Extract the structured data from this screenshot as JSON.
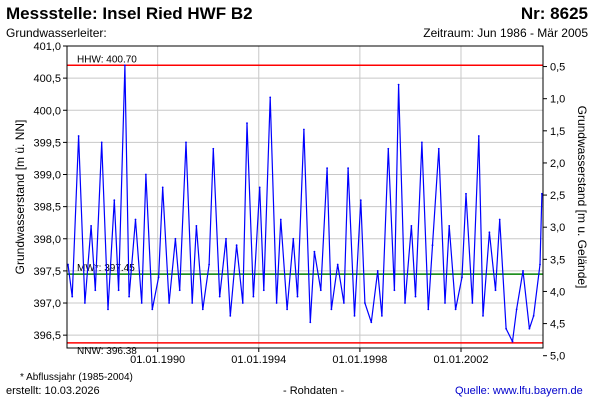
{
  "header": {
    "title": "Messstelle: Insel Ried HWF B2",
    "number": "Nr: 8625",
    "aquifer": "Grundwasserleiter:",
    "period": "Zeitraum: Jun 1986 - Mär 2005"
  },
  "footer": {
    "footnote": "* Abflussjahr (1985-2004)",
    "created": "erstellt:  10.03.2026",
    "raw_data": "- Rohdaten -",
    "source": "Quelle: www.lfu.bayern.de"
  },
  "colors": {
    "series": "#0000ff",
    "extreme_lines": "#ff0000",
    "mean_line": "#008000",
    "grid": "#c8c8c8"
  },
  "chart_data": {
    "type": "line",
    "title": "Messstelle: Insel Ried HWF B2",
    "ylabel": "Grundwasserstand [m ü. NN]",
    "ylabel_right": "Grundwasserstand [m u. Gelände]",
    "ylim": [
      396.3,
      401.0
    ],
    "ylim_right": [
      0.18,
      4.88
    ],
    "xlim": [
      "1986-06-01",
      "2005-03-31"
    ],
    "yticks": [
      "401,0",
      "400,5",
      "400,0",
      "399,5",
      "399,0",
      "398,5",
      "398,0",
      "397,5",
      "397,0",
      "396,5"
    ],
    "yticks_right": [
      "0,5",
      "1,0",
      "1,5",
      "2,0",
      "2,5",
      "3,0",
      "3,5",
      "4,0",
      "4,5",
      "5,0"
    ],
    "xticks": [
      "01.01.1990",
      "01.01.1994",
      "01.01.1998",
      "01.01.2002"
    ],
    "grid": true,
    "reference_lines": [
      {
        "label": "HHW: 400.70",
        "value": 400.7
      },
      {
        "label": "MW*: 397.45",
        "value": 397.45
      },
      {
        "label": "NNW: 396.38",
        "value": 396.38
      }
    ],
    "series": [
      {
        "x": [
          "1986-06",
          "1986-08",
          "1986-11",
          "1987-02",
          "1987-05",
          "1987-07",
          "1987-10",
          "1988-01",
          "1988-04",
          "1988-06",
          "1988-09",
          "1988-11",
          "1989-02",
          "1989-05",
          "1989-07",
          "1989-10",
          "1990-01",
          "1990-03",
          "1990-06",
          "1990-09",
          "1990-11",
          "1991-02",
          "1991-05",
          "1991-07",
          "1991-10",
          "1992-01",
          "1992-03",
          "1992-06",
          "1992-09",
          "1992-11",
          "1993-02",
          "1993-05",
          "1993-07",
          "1993-10",
          "1994-01",
          "1994-03",
          "1994-06",
          "1994-09",
          "1994-11",
          "1995-02",
          "1995-05",
          "1995-07",
          "1995-10",
          "1996-01",
          "1996-03",
          "1996-06",
          "1996-09",
          "1996-11",
          "1997-02",
          "1997-05",
          "1997-07",
          "1997-10",
          "1998-01",
          "1998-03",
          "1998-06",
          "1998-09",
          "1998-11",
          "1999-02",
          "1999-05",
          "1999-07",
          "1999-10",
          "2000-01",
          "2000-03",
          "2000-06",
          "2000-09",
          "2000-11",
          "2001-02",
          "2001-05",
          "2001-07",
          "2001-10",
          "2002-01",
          "2002-03",
          "2002-06",
          "2002-09",
          "2002-11",
          "2003-02",
          "2003-05",
          "2003-07",
          "2003-10",
          "2004-01",
          "2004-03",
          "2004-06",
          "2004-09",
          "2004-11",
          "2005-02",
          "2005-03"
        ],
        "y": [
          397.6,
          397.1,
          399.6,
          397.0,
          398.2,
          397.2,
          399.5,
          396.9,
          398.6,
          397.2,
          400.7,
          397.1,
          398.3,
          397.0,
          399.0,
          396.9,
          397.4,
          398.8,
          397.0,
          398.0,
          397.2,
          399.5,
          397.0,
          398.2,
          396.9,
          397.6,
          399.4,
          397.1,
          398.0,
          396.8,
          397.9,
          397.0,
          399.8,
          397.1,
          398.8,
          397.2,
          400.2,
          397.0,
          398.3,
          396.9,
          398.0,
          397.1,
          399.7,
          396.7,
          397.8,
          397.2,
          399.1,
          396.9,
          397.6,
          397.0,
          399.1,
          396.8,
          398.6,
          397.0,
          396.7,
          397.5,
          396.8,
          399.4,
          397.2,
          400.4,
          397.0,
          398.2,
          397.1,
          399.5,
          396.9,
          397.9,
          399.4,
          397.0,
          398.2,
          396.9,
          397.4,
          398.7,
          397.0,
          399.6,
          396.8,
          398.1,
          397.2,
          398.3,
          396.6,
          396.4,
          396.9,
          397.5,
          396.6,
          396.8,
          397.6,
          398.7
        ]
      }
    ]
  }
}
